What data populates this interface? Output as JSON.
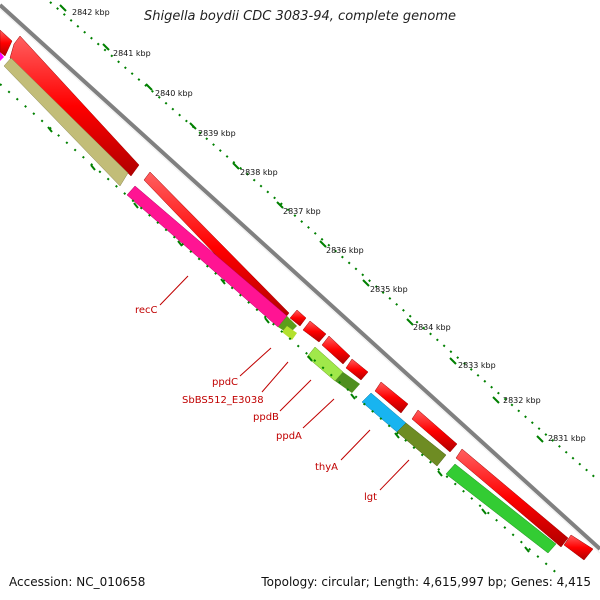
{
  "title": "Shigella boydii CDC 3083-94, complete genome",
  "footer": {
    "accession": "Accession: NC_010658",
    "summary": "Topology: circular; Length: 4,615,997 bp; Genes: 4,415"
  },
  "ticks": [
    {
      "label": "2842 kbp"
    },
    {
      "label": "2841 kbp"
    },
    {
      "label": "2840 kbp"
    },
    {
      "label": "2839 kbp"
    },
    {
      "label": "2838 kbp"
    },
    {
      "label": "2837 kbp"
    },
    {
      "label": "2836 kbp"
    },
    {
      "label": "2835 kbp"
    },
    {
      "label": "2834 kbp"
    },
    {
      "label": "2833 kbp"
    },
    {
      "label": "2832 kbp"
    },
    {
      "label": "2831 kbp"
    }
  ],
  "genes": [
    {
      "label": "recC",
      "color": "#ff1493"
    },
    {
      "label": "ppdC",
      "color": "#5c9e1a"
    },
    {
      "label": "SbBS512_E3038",
      "color": "#b4e12d"
    },
    {
      "label": "ppdB",
      "color": "#a0e84a"
    },
    {
      "label": "ppdA",
      "color": "#4f8f1f"
    },
    {
      "label": "thyA",
      "color": "#18b4f0"
    },
    {
      "label": "lgt",
      "color": "#6e8c23"
    }
  ],
  "colors": {
    "cds_forward": "#ff0000",
    "backbone": "#808080",
    "tick": "#008000",
    "label": "#c00000",
    "next_gene_green": "#33cc33",
    "prev_gene_olive": "#c2bd78"
  }
}
